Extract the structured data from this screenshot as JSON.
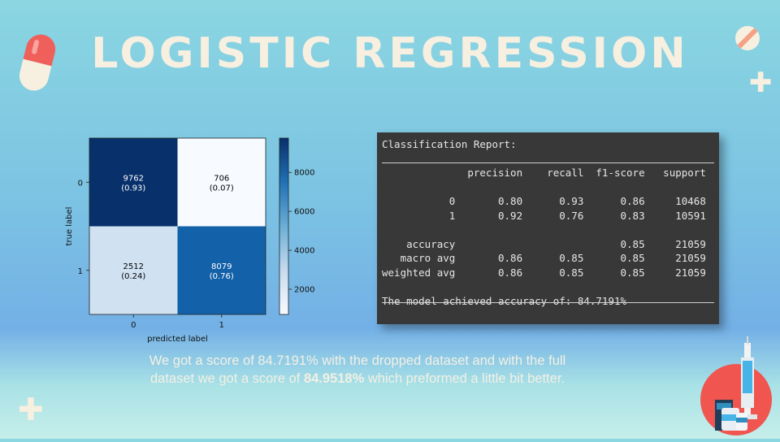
{
  "slide": {
    "title": "LOGISTIC REGRESSION",
    "caption_part1": "We got a score of 84.7191% with the dropped dataset and with the full dataset we got a score of ",
    "caption_bold": "84.9518%",
    "caption_part2": " which preformed a little bit better."
  },
  "report": {
    "header": "Classification Report:",
    "columns": "              precision    recall  f1-score   support",
    "row0": "           0       0.80      0.93      0.86     10468",
    "row1": "           1       0.92      0.76      0.83     10591",
    "accuracy": "    accuracy                           0.85     21059",
    "macro": "   macro avg       0.86      0.85      0.85     21059",
    "weighted": "weighted avg       0.86      0.85      0.85     21059",
    "footer": "The model achieved accuracy of: 84.7191%"
  },
  "chart_data": {
    "type": "heatmap",
    "title": "",
    "xlabel": "predicted label",
    "ylabel": "true label",
    "x_categories": [
      "0",
      "1"
    ],
    "y_categories": [
      "0",
      "1"
    ],
    "values": [
      [
        9762,
        706
      ],
      [
        2512,
        8079
      ]
    ],
    "normalized": [
      [
        "(0.93)",
        "(0.07)"
      ],
      [
        "(0.24)",
        "(0.76)"
      ]
    ],
    "colorbar": {
      "ticks": [
        "8000",
        "6000",
        "4000",
        "2000"
      ],
      "tick_values": [
        8000,
        6000,
        4000,
        2000
      ],
      "min": 706,
      "max": 9762
    },
    "colormap": "Blues",
    "text_colors": [
      [
        "#ffffff",
        "#000000"
      ],
      [
        "#000000",
        "#ffffff"
      ]
    ],
    "cell_colors": [
      [
        "#08306b",
        "#f7fbff"
      ],
      [
        "#d0e1f2",
        "#1361a9"
      ]
    ]
  }
}
